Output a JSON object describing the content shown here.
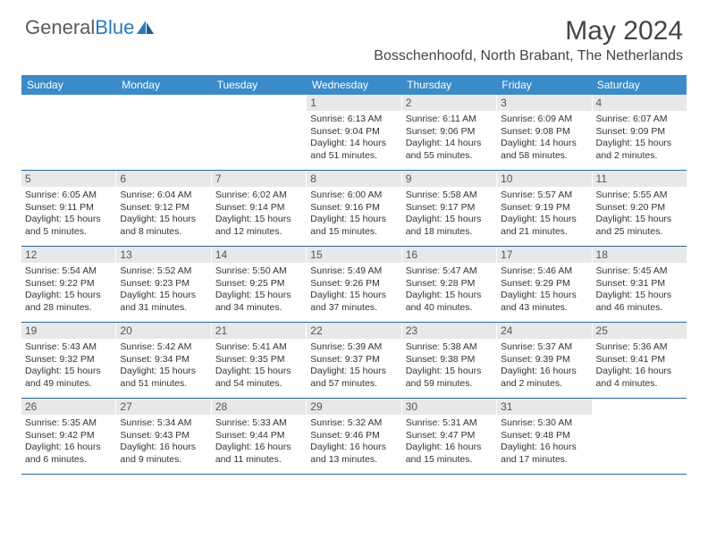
{
  "brand": {
    "g": "General",
    "b": "Blue"
  },
  "title": "May 2024",
  "location": "Bosschenhoofd, North Brabant, The Netherlands",
  "colors": {
    "header_bg": "#3b8bc9",
    "daynum_bg": "#e8e8e8",
    "rule": "#2a6a9a",
    "text": "#333333",
    "title_text": "#444444"
  },
  "day_names": [
    "Sunday",
    "Monday",
    "Tuesday",
    "Wednesday",
    "Thursday",
    "Friday",
    "Saturday"
  ],
  "weeks": [
    [
      {
        "n": "",
        "sr": "",
        "ss": "",
        "dl": ""
      },
      {
        "n": "",
        "sr": "",
        "ss": "",
        "dl": ""
      },
      {
        "n": "",
        "sr": "",
        "ss": "",
        "dl": ""
      },
      {
        "n": "1",
        "sr": "Sunrise: 6:13 AM",
        "ss": "Sunset: 9:04 PM",
        "dl": "Daylight: 14 hours and 51 minutes."
      },
      {
        "n": "2",
        "sr": "Sunrise: 6:11 AM",
        "ss": "Sunset: 9:06 PM",
        "dl": "Daylight: 14 hours and 55 minutes."
      },
      {
        "n": "3",
        "sr": "Sunrise: 6:09 AM",
        "ss": "Sunset: 9:08 PM",
        "dl": "Daylight: 14 hours and 58 minutes."
      },
      {
        "n": "4",
        "sr": "Sunrise: 6:07 AM",
        "ss": "Sunset: 9:09 PM",
        "dl": "Daylight: 15 hours and 2 minutes."
      }
    ],
    [
      {
        "n": "5",
        "sr": "Sunrise: 6:05 AM",
        "ss": "Sunset: 9:11 PM",
        "dl": "Daylight: 15 hours and 5 minutes."
      },
      {
        "n": "6",
        "sr": "Sunrise: 6:04 AM",
        "ss": "Sunset: 9:12 PM",
        "dl": "Daylight: 15 hours and 8 minutes."
      },
      {
        "n": "7",
        "sr": "Sunrise: 6:02 AM",
        "ss": "Sunset: 9:14 PM",
        "dl": "Daylight: 15 hours and 12 minutes."
      },
      {
        "n": "8",
        "sr": "Sunrise: 6:00 AM",
        "ss": "Sunset: 9:16 PM",
        "dl": "Daylight: 15 hours and 15 minutes."
      },
      {
        "n": "9",
        "sr": "Sunrise: 5:58 AM",
        "ss": "Sunset: 9:17 PM",
        "dl": "Daylight: 15 hours and 18 minutes."
      },
      {
        "n": "10",
        "sr": "Sunrise: 5:57 AM",
        "ss": "Sunset: 9:19 PM",
        "dl": "Daylight: 15 hours and 21 minutes."
      },
      {
        "n": "11",
        "sr": "Sunrise: 5:55 AM",
        "ss": "Sunset: 9:20 PM",
        "dl": "Daylight: 15 hours and 25 minutes."
      }
    ],
    [
      {
        "n": "12",
        "sr": "Sunrise: 5:54 AM",
        "ss": "Sunset: 9:22 PM",
        "dl": "Daylight: 15 hours and 28 minutes."
      },
      {
        "n": "13",
        "sr": "Sunrise: 5:52 AM",
        "ss": "Sunset: 9:23 PM",
        "dl": "Daylight: 15 hours and 31 minutes."
      },
      {
        "n": "14",
        "sr": "Sunrise: 5:50 AM",
        "ss": "Sunset: 9:25 PM",
        "dl": "Daylight: 15 hours and 34 minutes."
      },
      {
        "n": "15",
        "sr": "Sunrise: 5:49 AM",
        "ss": "Sunset: 9:26 PM",
        "dl": "Daylight: 15 hours and 37 minutes."
      },
      {
        "n": "16",
        "sr": "Sunrise: 5:47 AM",
        "ss": "Sunset: 9:28 PM",
        "dl": "Daylight: 15 hours and 40 minutes."
      },
      {
        "n": "17",
        "sr": "Sunrise: 5:46 AM",
        "ss": "Sunset: 9:29 PM",
        "dl": "Daylight: 15 hours and 43 minutes."
      },
      {
        "n": "18",
        "sr": "Sunrise: 5:45 AM",
        "ss": "Sunset: 9:31 PM",
        "dl": "Daylight: 15 hours and 46 minutes."
      }
    ],
    [
      {
        "n": "19",
        "sr": "Sunrise: 5:43 AM",
        "ss": "Sunset: 9:32 PM",
        "dl": "Daylight: 15 hours and 49 minutes."
      },
      {
        "n": "20",
        "sr": "Sunrise: 5:42 AM",
        "ss": "Sunset: 9:34 PM",
        "dl": "Daylight: 15 hours and 51 minutes."
      },
      {
        "n": "21",
        "sr": "Sunrise: 5:41 AM",
        "ss": "Sunset: 9:35 PM",
        "dl": "Daylight: 15 hours and 54 minutes."
      },
      {
        "n": "22",
        "sr": "Sunrise: 5:39 AM",
        "ss": "Sunset: 9:37 PM",
        "dl": "Daylight: 15 hours and 57 minutes."
      },
      {
        "n": "23",
        "sr": "Sunrise: 5:38 AM",
        "ss": "Sunset: 9:38 PM",
        "dl": "Daylight: 15 hours and 59 minutes."
      },
      {
        "n": "24",
        "sr": "Sunrise: 5:37 AM",
        "ss": "Sunset: 9:39 PM",
        "dl": "Daylight: 16 hours and 2 minutes."
      },
      {
        "n": "25",
        "sr": "Sunrise: 5:36 AM",
        "ss": "Sunset: 9:41 PM",
        "dl": "Daylight: 16 hours and 4 minutes."
      }
    ],
    [
      {
        "n": "26",
        "sr": "Sunrise: 5:35 AM",
        "ss": "Sunset: 9:42 PM",
        "dl": "Daylight: 16 hours and 6 minutes."
      },
      {
        "n": "27",
        "sr": "Sunrise: 5:34 AM",
        "ss": "Sunset: 9:43 PM",
        "dl": "Daylight: 16 hours and 9 minutes."
      },
      {
        "n": "28",
        "sr": "Sunrise: 5:33 AM",
        "ss": "Sunset: 9:44 PM",
        "dl": "Daylight: 16 hours and 11 minutes."
      },
      {
        "n": "29",
        "sr": "Sunrise: 5:32 AM",
        "ss": "Sunset: 9:46 PM",
        "dl": "Daylight: 16 hours and 13 minutes."
      },
      {
        "n": "30",
        "sr": "Sunrise: 5:31 AM",
        "ss": "Sunset: 9:47 PM",
        "dl": "Daylight: 16 hours and 15 minutes."
      },
      {
        "n": "31",
        "sr": "Sunrise: 5:30 AM",
        "ss": "Sunset: 9:48 PM",
        "dl": "Daylight: 16 hours and 17 minutes."
      },
      {
        "n": "",
        "sr": "",
        "ss": "",
        "dl": ""
      }
    ]
  ]
}
